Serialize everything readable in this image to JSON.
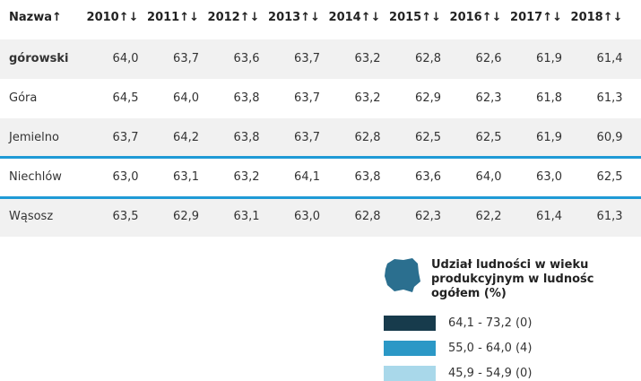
{
  "table": {
    "header": [
      "Nazwa↑",
      "2010↑↓",
      "2011↑↓",
      "2012↑↓",
      "2013↑↓",
      "2014↑↓",
      "2015↑↓",
      "2016↑↓",
      "2017↑↓",
      "2018↑↓"
    ],
    "rows": [
      [
        "górowski",
        "64,0",
        "63,7",
        "63,6",
        "63,7",
        "63,2",
        "62,8",
        "62,6",
        "61,9",
        "61,4"
      ],
      [
        "Góra",
        "64,5",
        "64,0",
        "63,8",
        "63,7",
        "63,2",
        "62,9",
        "62,3",
        "61,8",
        "61,3"
      ],
      [
        "Jemielno",
        "63,7",
        "64,2",
        "63,8",
        "63,7",
        "62,8",
        "62,5",
        "62,5",
        "61,9",
        "60,9"
      ],
      [
        "Niechlów",
        "63,0",
        "63,1",
        "63,2",
        "64,1",
        "63,8",
        "63,6",
        "64,0",
        "63,0",
        "62,5"
      ],
      [
        "Wąsosz",
        "63,5",
        "62,9",
        "63,1",
        "63,0",
        "62,8",
        "62,3",
        "62,2",
        "61,4",
        "61,3"
      ]
    ]
  },
  "legend": {
    "title_lines": [
      "Udział ludności w wieku",
      "produkcyjnym w ludnośc",
      "ogółem (%)"
    ],
    "items": [
      {
        "label": "64,1 - 73,2 (0)",
        "color": "#173b4c"
      },
      {
        "label": "55,0 - 64,0 (4)",
        "color": "#2b98c6"
      },
      {
        "label": "45,9 - 54,9 (0)",
        "color": "#a9d8ea"
      }
    ]
  }
}
